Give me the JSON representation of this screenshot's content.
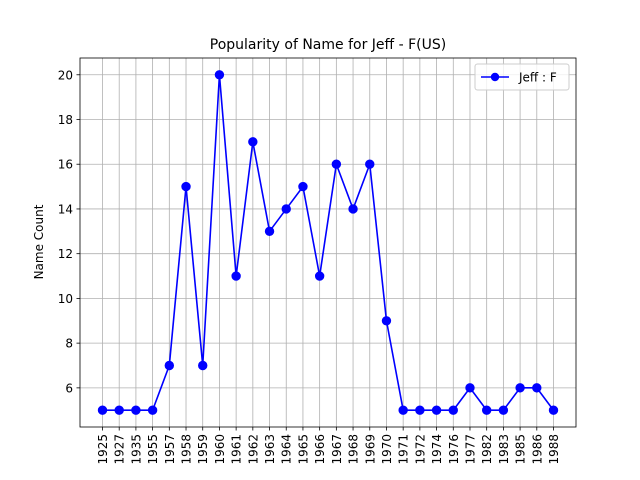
{
  "chart_data": {
    "type": "line",
    "title": "Popularity of Name for Jeff - F(US)",
    "xlabel": "",
    "ylabel": "Name Count",
    "categories": [
      "1925",
      "1927",
      "1935",
      "1955",
      "1957",
      "1958",
      "1959",
      "1960",
      "1961",
      "1962",
      "1963",
      "1964",
      "1965",
      "1966",
      "1967",
      "1968",
      "1969",
      "1970",
      "1971",
      "1972",
      "1974",
      "1976",
      "1977",
      "1982",
      "1983",
      "1985",
      "1986",
      "1988"
    ],
    "series": [
      {
        "name": "Jeff : F",
        "values": [
          5,
          5,
          5,
          5,
          7,
          15,
          7,
          20,
          11,
          17,
          13,
          14,
          15,
          11,
          16,
          14,
          16,
          9,
          5,
          5,
          5,
          5,
          6,
          5,
          5,
          6,
          6,
          5
        ],
        "color": "#0000ff",
        "marker": "circle"
      }
    ],
    "ylim": [
      4.25,
      20.75
    ],
    "yticks": [
      6,
      8,
      10,
      12,
      14,
      16,
      18,
      20
    ],
    "grid": true,
    "legend": "top-right"
  }
}
